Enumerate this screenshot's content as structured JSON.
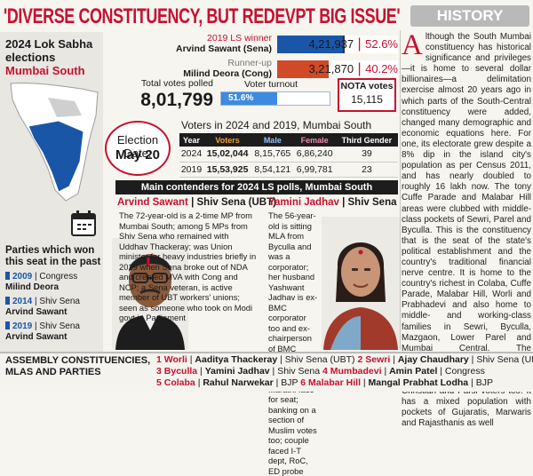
{
  "headline": "'DIVERSE CONSTITUENCY, BUT REDEVPT BIG ISSUE'",
  "sidebar": {
    "title": "2024 Lok Sabha elections",
    "constituency": "Mumbai South",
    "parties_won_title": "Parties which won this seat in the past",
    "past": [
      {
        "year": "2009",
        "party": "Congress",
        "name": "Milind Deora"
      },
      {
        "year": "2014",
        "party": "Shiv Sena",
        "name": "Arvind Sawant"
      },
      {
        "year": "2019",
        "party": "Shiv Sena",
        "name": "Arvind Sawant"
      }
    ]
  },
  "results": {
    "winner_label": "2019 LS winner",
    "winner_name": "Arvind Sawant (Sena)",
    "winner_votes": "4,21,937",
    "winner_pct": "52.6%",
    "runner_label": "Runner-up",
    "runner_name": "Milind Deora (Cong)",
    "runner_votes": "3,21,870",
    "runner_pct": "40.2%",
    "total_label": "Total votes polled",
    "total_value": "8,01,799",
    "turnout_label": "Voter turnout",
    "turnout_value": "51.6%",
    "nota_label": "NOTA votes",
    "nota_value": "15,115",
    "winner_share": 52.6,
    "runner_share": 40.2,
    "turnout_share": 51.6
  },
  "election": {
    "line1": "Election Date:",
    "line2": "May 20"
  },
  "voters": {
    "title": "Voters in 2024 and 2019, Mumbai South",
    "headers": [
      "Year",
      "Voters",
      "Male",
      "Female",
      "Third Gender"
    ],
    "rows": [
      [
        "2024",
        "15,02,044",
        "8,15,765",
        "6,86,240",
        "39"
      ],
      [
        "2019",
        "15,53,925",
        "8,54,121",
        "6,99,781",
        "23"
      ]
    ]
  },
  "contenders": {
    "title": "Main contenders for 2024 LS polls, Mumbai South",
    "left": {
      "name": "Arvind Sawant",
      "party": "Shiv Sena (UBT)",
      "desc": "The 72-year-old is a 2-time MP from Mumbai South; among 5 MPs from Shiv Sena who remained with Uddhav Thackeray; was Union minister for heavy industries briefly in 2019 when Sena broke out of NDA and created MVA with Cong and NCP; a Sena veteran, is active member of UBT workers' unions; seen as someone who took on Modi govt in Parliament"
    },
    "right": {
      "name": "Yamini Jadhav",
      "party": "Shiv Sena",
      "desc": "The 56-year-old is sitting MLA from Byculla and was a corporator; her husband Yashwant Jadhav is ex-BMC corporator too and ex-chairperson of BMC standing committee; picked as a Marathi face for seat; banking on a section of Muslim votes too; couple faced I-T dept, RoC, ED probe"
    }
  },
  "history": {
    "tag": "HISTORY",
    "drop": "A",
    "text": "lthough the South Mumbai constituency has historical significance and privileges—it is home to several dollar billionaires—a delimitation exercise almost 20 years ago in which parts of the South-Central constituency were added, changed many demographic and economic equations here. For one, its electorate grew despite a 8% dip in the island city's population as per Census 2011, and has nearly doubled to roughly 16 lakh now. The tony Cuffe Parade and Malabar Hill areas were clubbed with middle-class pockets of Sewri, Parel and Byculla. This is the constituency that is the seat of the state's political establishment and the country's traditional financial nerve centre. It is home to the country's richest in Colaba, Cuffe Parade, Malabar Hill, Worli and Prabhadevi and also home to middle- and working-class families in Sewri, Byculla, Mazgaon, Lower Parel and Mumbai Central. The constituency has a significant Muslim population in Byculla, Mumbadevi and pockets of Christian and Parsi voters too. It has a mixed population with pockets of Gujaratis, Marwaris and Rajasthanis as well"
  },
  "assembly": {
    "title": "ASSEMBLY CONSTITUENCIES, MLAS AND PARTIES",
    "rows": [
      [
        {
          "no": "1",
          "seat": "Worli",
          "mla": "Aaditya Thackeray",
          "party": "Shiv Sena (UBT)"
        },
        {
          "no": "2",
          "seat": "Sewri",
          "mla": "Ajay Chaudhary",
          "party": "Shiv Sena (UBT)"
        }
      ],
      [
        {
          "no": "3",
          "seat": "Byculla",
          "mla": "Yamini Jadhav",
          "party": "Shiv Sena"
        },
        {
          "no": "4",
          "seat": "Mumbadevi",
          "mla": "Amin Patel",
          "party": "Congress"
        }
      ],
      [
        {
          "no": "5",
          "seat": "Colaba",
          "mla": "Rahul Narwekar",
          "party": "BJP"
        },
        {
          "no": "6",
          "seat": "Malabar Hill",
          "mla": "Mangal Prabhat Lodha",
          "party": "BJP"
        }
      ]
    ]
  },
  "colors": {
    "accent_red": "#c8102e",
    "accent_blue": "#1a56a8"
  }
}
